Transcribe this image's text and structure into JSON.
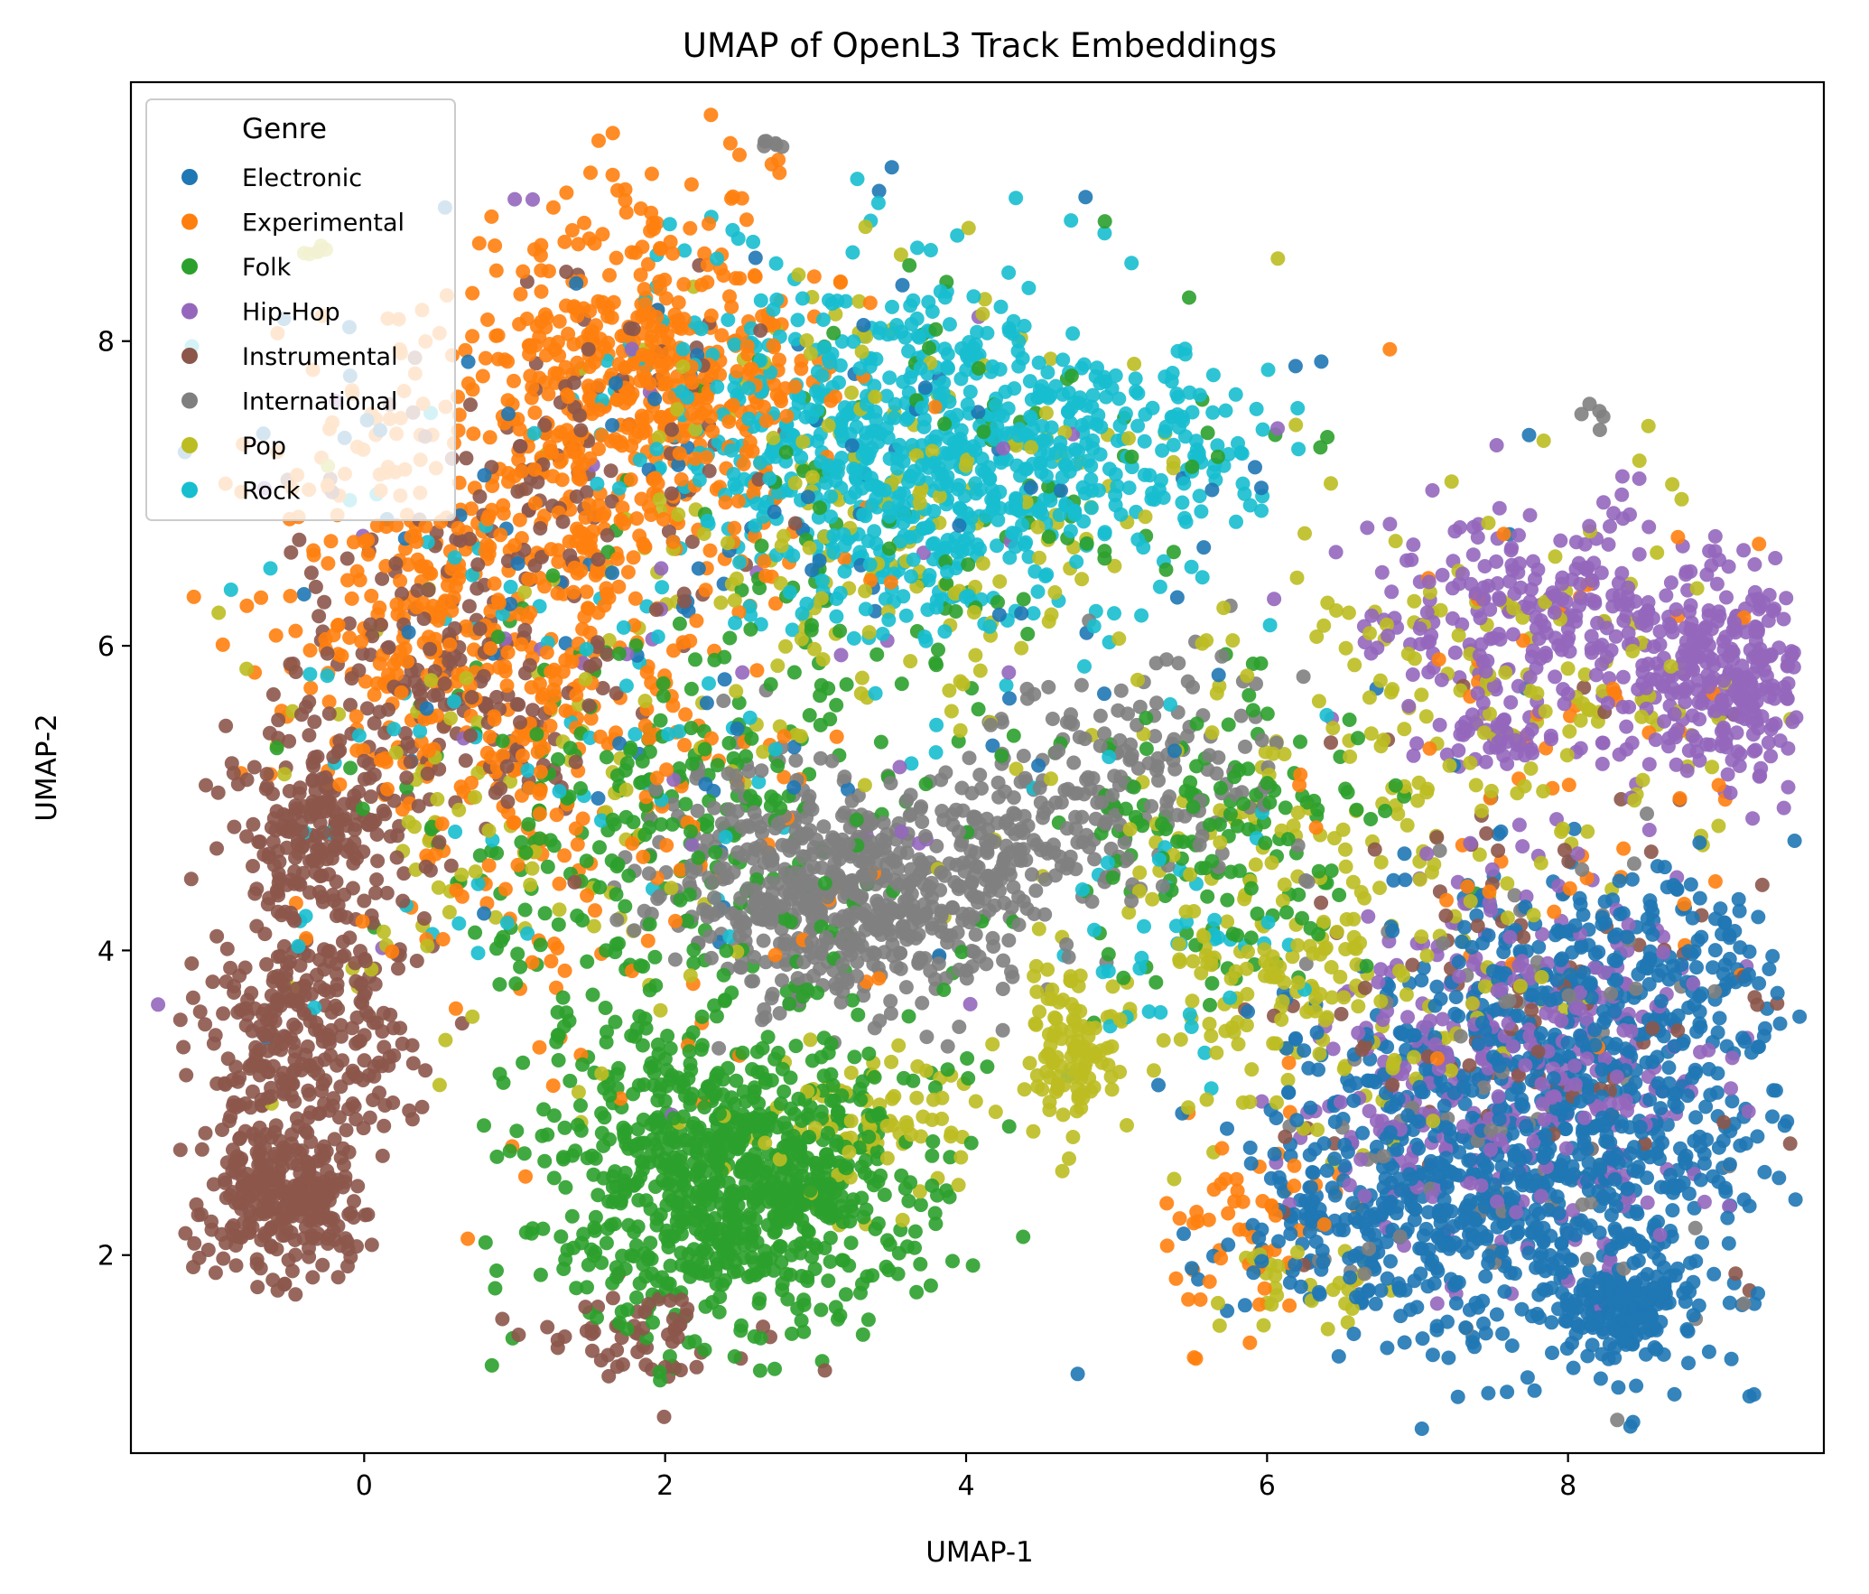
{
  "chart_data": {
    "type": "scatter",
    "title": "UMAP of OpenL3 Track Embeddings",
    "xlabel": "UMAP-1",
    "ylabel": "UMAP-2",
    "xlim": [
      -1.55,
      9.7
    ],
    "ylim": [
      0.7,
      9.7
    ],
    "xticks": [
      0,
      2,
      4,
      6,
      8
    ],
    "yticks": [
      2,
      4,
      6,
      8
    ],
    "xtick_labels": [
      "0",
      "2",
      "4",
      "6",
      "8"
    ],
    "ytick_labels": [
      "2",
      "4",
      "6",
      "8"
    ],
    "grid": false,
    "legend": {
      "title": "Genre",
      "position": "upper-left"
    },
    "series": [
      {
        "name": "Electronic",
        "color": "#1f77b4",
        "clusters": [
          {
            "cx": 7.9,
            "cy": 2.8,
            "sx": 0.75,
            "sy": 0.75,
            "n": 900
          },
          {
            "cx": 8.35,
            "cy": 1.65,
            "sx": 0.2,
            "sy": 0.15,
            "n": 150
          },
          {
            "cx": 6.7,
            "cy": 2.2,
            "sx": 0.5,
            "sy": 0.35,
            "n": 200
          },
          {
            "cx": 8.4,
            "cy": 3.9,
            "sx": 0.6,
            "sy": 0.35,
            "n": 150
          },
          {
            "cx": 2.5,
            "cy": 6.5,
            "sx": 1.8,
            "sy": 1.4,
            "n": 120
          }
        ]
      },
      {
        "name": "Experimental",
        "color": "#ff7f0e",
        "clusters": [
          {
            "cx": 1.9,
            "cy": 7.8,
            "sx": 0.6,
            "sy": 0.55,
            "n": 500
          },
          {
            "cx": 0.7,
            "cy": 6.3,
            "sx": 0.7,
            "sy": 0.8,
            "n": 400
          },
          {
            "cx": 1.4,
            "cy": 5.2,
            "sx": 0.9,
            "sy": 0.9,
            "n": 200
          },
          {
            "cx": 5.9,
            "cy": 2.2,
            "sx": 0.3,
            "sy": 0.3,
            "n": 60
          },
          {
            "cx": 8.0,
            "cy": 5.5,
            "sx": 0.9,
            "sy": 1.0,
            "n": 60
          },
          {
            "cx": 2.7,
            "cy": 9.1,
            "sx": 0.05,
            "sy": 0.05,
            "n": 3
          }
        ]
      },
      {
        "name": "Folk",
        "color": "#2ca02c",
        "clusters": [
          {
            "cx": 2.5,
            "cy": 2.5,
            "sx": 0.6,
            "sy": 0.5,
            "n": 900
          },
          {
            "cx": 2.0,
            "cy": 4.8,
            "sx": 0.9,
            "sy": 0.8,
            "n": 300
          },
          {
            "cx": 5.6,
            "cy": 4.8,
            "sx": 0.6,
            "sy": 0.5,
            "n": 150
          },
          {
            "cx": 4.0,
            "cy": 7.0,
            "sx": 1.0,
            "sy": 0.7,
            "n": 100
          }
        ]
      },
      {
        "name": "Hip-Hop",
        "color": "#9467bd",
        "clusters": [
          {
            "cx": 9.0,
            "cy": 5.8,
            "sx": 0.35,
            "sy": 0.35,
            "n": 300
          },
          {
            "cx": 7.8,
            "cy": 6.2,
            "sx": 0.6,
            "sy": 0.35,
            "n": 250
          },
          {
            "cx": 7.5,
            "cy": 5.4,
            "sx": 0.2,
            "sy": 0.1,
            "n": 50
          },
          {
            "cx": 7.6,
            "cy": 3.2,
            "sx": 0.7,
            "sy": 0.6,
            "n": 350
          },
          {
            "cx": 2.0,
            "cy": 6.0,
            "sx": 1.5,
            "sy": 1.5,
            "n": 40
          }
        ]
      },
      {
        "name": "Instrumental",
        "color": "#8c564b",
        "clusters": [
          {
            "cx": -0.5,
            "cy": 2.4,
            "sx": 0.25,
            "sy": 0.25,
            "n": 300
          },
          {
            "cx": -0.4,
            "cy": 3.5,
            "sx": 0.35,
            "sy": 0.4,
            "n": 300
          },
          {
            "cx": -0.3,
            "cy": 4.8,
            "sx": 0.3,
            "sy": 0.3,
            "n": 200
          },
          {
            "cx": 0.5,
            "cy": 5.8,
            "sx": 0.5,
            "sy": 0.6,
            "n": 200
          },
          {
            "cx": 1.8,
            "cy": 1.4,
            "sx": 0.35,
            "sy": 0.2,
            "n": 60
          },
          {
            "cx": 1.6,
            "cy": 7.3,
            "sx": 0.6,
            "sy": 0.6,
            "n": 100
          },
          {
            "cx": 7.8,
            "cy": 3.5,
            "sx": 0.8,
            "sy": 0.8,
            "n": 100
          }
        ]
      },
      {
        "name": "International",
        "color": "#7f7f7f",
        "clusters": [
          {
            "cx": 3.3,
            "cy": 4.3,
            "sx": 0.5,
            "sy": 0.35,
            "n": 400
          },
          {
            "cx": 2.6,
            "cy": 4.5,
            "sx": 0.4,
            "sy": 0.4,
            "n": 200
          },
          {
            "cx": 4.3,
            "cy": 4.6,
            "sx": 0.35,
            "sy": 0.35,
            "n": 150
          },
          {
            "cx": 5.2,
            "cy": 5.2,
            "sx": 0.5,
            "sy": 0.4,
            "n": 150
          },
          {
            "cx": 2.7,
            "cy": 9.3,
            "sx": 0.03,
            "sy": 0.03,
            "n": 6
          },
          {
            "cx": 8.2,
            "cy": 7.5,
            "sx": 0.04,
            "sy": 0.04,
            "n": 5
          },
          {
            "cx": 7.5,
            "cy": 3.0,
            "sx": 0.8,
            "sy": 0.8,
            "n": 80
          }
        ]
      },
      {
        "name": "Pop",
        "color": "#bcbd22",
        "clusters": [
          {
            "cx": 4.7,
            "cy": 3.3,
            "sx": 0.15,
            "sy": 0.25,
            "n": 100
          },
          {
            "cx": 6.2,
            "cy": 4.0,
            "sx": 0.8,
            "sy": 0.6,
            "n": 250
          },
          {
            "cx": 3.5,
            "cy": 6.8,
            "sx": 1.0,
            "sy": 0.8,
            "n": 200
          },
          {
            "cx": 7.5,
            "cy": 5.8,
            "sx": 0.9,
            "sy": 0.7,
            "n": 150
          },
          {
            "cx": 1.0,
            "cy": 5.0,
            "sx": 1.0,
            "sy": 1.0,
            "n": 100
          },
          {
            "cx": 3.5,
            "cy": 2.8,
            "sx": 0.4,
            "sy": 0.3,
            "n": 80
          },
          {
            "cx": -0.35,
            "cy": 8.6,
            "sx": 0.05,
            "sy": 0.03,
            "n": 6
          },
          {
            "cx": 6.2,
            "cy": 1.8,
            "sx": 0.3,
            "sy": 0.15,
            "n": 30
          }
        ]
      },
      {
        "name": "Rock",
        "color": "#17becf",
        "clusters": [
          {
            "cx": 3.7,
            "cy": 7.2,
            "sx": 0.7,
            "sy": 0.6,
            "n": 600
          },
          {
            "cx": 5.0,
            "cy": 7.3,
            "sx": 0.5,
            "sy": 0.3,
            "n": 150
          },
          {
            "cx": 2.7,
            "cy": 7.6,
            "sx": 0.5,
            "sy": 0.5,
            "n": 100
          },
          {
            "cx": 5.4,
            "cy": 4.0,
            "sx": 0.4,
            "sy": 0.4,
            "n": 40
          },
          {
            "cx": 1.2,
            "cy": 5.5,
            "sx": 1.2,
            "sy": 1.2,
            "n": 80
          }
        ]
      }
    ]
  }
}
